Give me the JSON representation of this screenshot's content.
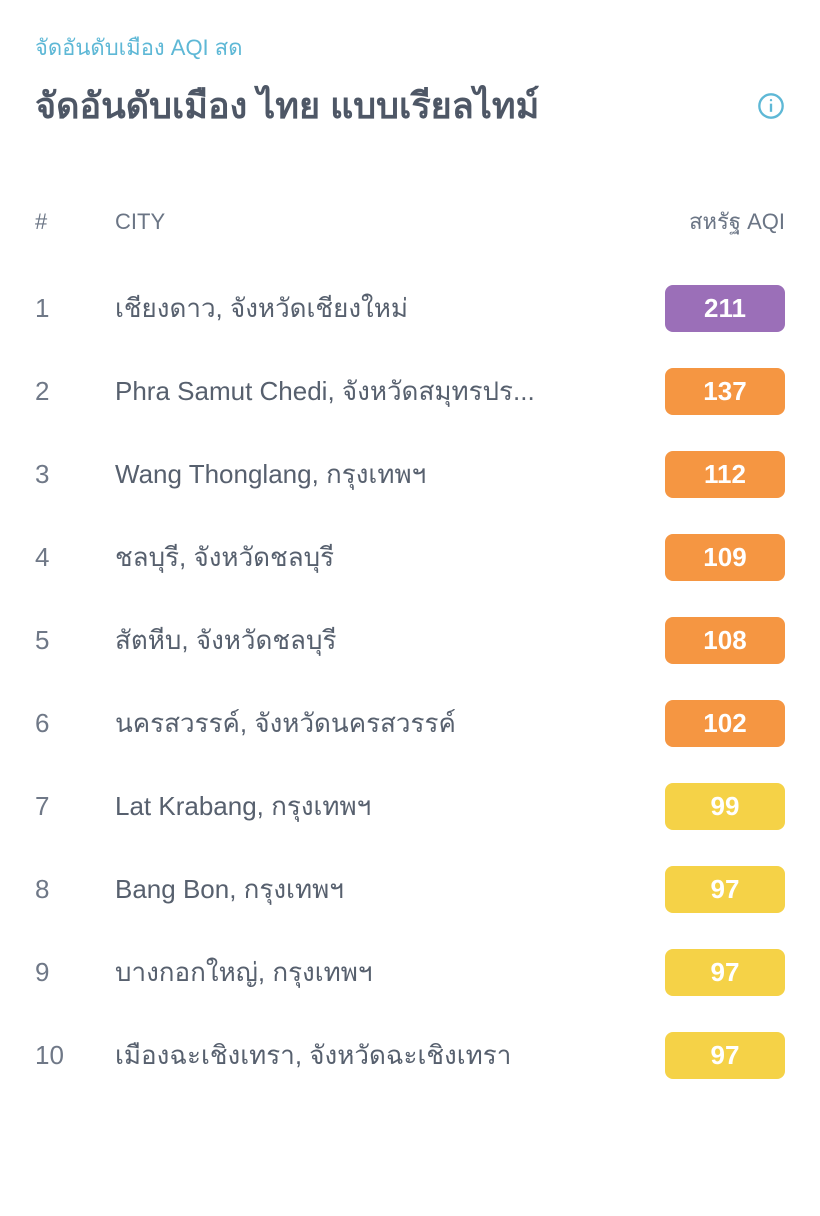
{
  "section_label": "จัดอันดับเมือง AQI สด",
  "title": "จัดอันดับเมือง ไทย แบบเรียลไทม์",
  "info_icon_color": "#5eb8d6",
  "table": {
    "headers": {
      "rank": "#",
      "city": "CITY",
      "aqi": "สหรัฐ AQI"
    },
    "rows": [
      {
        "rank": "1",
        "city": "เชียงดาว, จังหวัดเชียงใหม่",
        "aqi": "211",
        "color": "#9b6fb8"
      },
      {
        "rank": "2",
        "city": "Phra Samut Chedi, จังหวัดสมุทรปร...",
        "aqi": "137",
        "color": "#f59642"
      },
      {
        "rank": "3",
        "city": "Wang Thonglang, กรุงเทพฯ",
        "aqi": "112",
        "color": "#f59642"
      },
      {
        "rank": "4",
        "city": "ชลบุรี, จังหวัดชลบุรี",
        "aqi": "109",
        "color": "#f59642"
      },
      {
        "rank": "5",
        "city": "สัตหีบ, จังหวัดชลบุรี",
        "aqi": "108",
        "color": "#f59642"
      },
      {
        "rank": "6",
        "city": "นครสวรรค์, จังหวัดนครสวรรค์",
        "aqi": "102",
        "color": "#f59642"
      },
      {
        "rank": "7",
        "city": "Lat Krabang, กรุงเทพฯ",
        "aqi": "99",
        "color": "#f5d247"
      },
      {
        "rank": "8",
        "city": "Bang Bon, กรุงเทพฯ",
        "aqi": "97",
        "color": "#f5d247"
      },
      {
        "rank": "9",
        "city": "บางกอกใหญ่, กรุงเทพฯ",
        "aqi": "97",
        "color": "#f5d247"
      },
      {
        "rank": "10",
        "city": "เมืองฉะเชิงเทรา, จังหวัดฉะเชิงเทรา",
        "aqi": "97",
        "color": "#f5d247"
      }
    ]
  }
}
